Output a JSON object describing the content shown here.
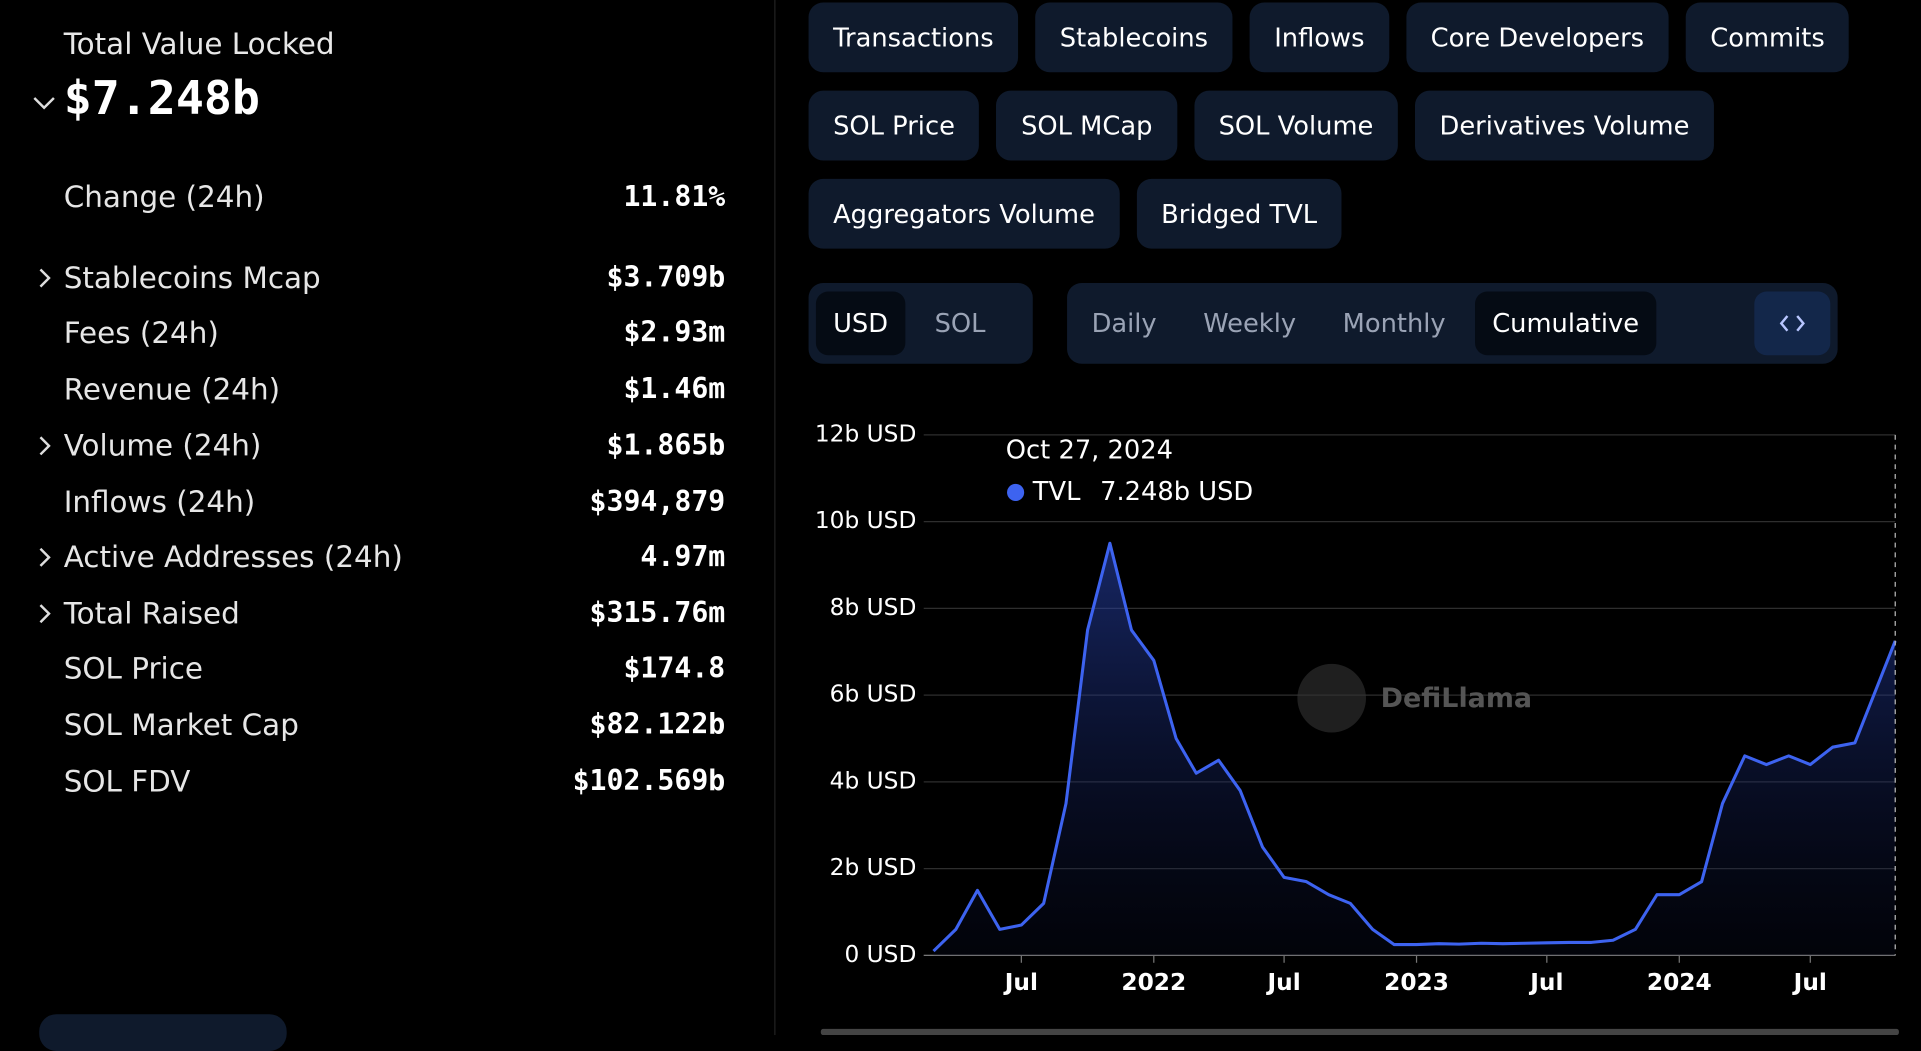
{
  "summary": {
    "label": "Total Value Locked",
    "value": "$7.248b"
  },
  "stats": [
    {
      "label": "Change (24h)",
      "value": "11.81%",
      "expandable": false
    },
    {
      "label": "Stablecoins Mcap",
      "value": "$3.709b",
      "expandable": true
    },
    {
      "label": "Fees (24h)",
      "value": "$2.93m",
      "expandable": false
    },
    {
      "label": "Revenue (24h)",
      "value": "$1.46m",
      "expandable": false
    },
    {
      "label": "Volume (24h)",
      "value": "$1.865b",
      "expandable": true
    },
    {
      "label": "Inflows (24h)",
      "value": "$394,879",
      "expandable": false
    },
    {
      "label": "Active Addresses (24h)",
      "value": "4.97m",
      "expandable": true
    },
    {
      "label": "Total Raised",
      "value": "$315.76m",
      "expandable": true
    },
    {
      "label": "SOL Price",
      "value": "$174.8",
      "expandable": false
    },
    {
      "label": "SOL Market Cap",
      "value": "$82.122b",
      "expandable": false
    },
    {
      "label": "SOL FDV",
      "value": "$102.569b",
      "expandable": false
    }
  ],
  "metrics": [
    "Transactions",
    "Stablecoins",
    "Inflows",
    "Core Developers",
    "Commits",
    "SOL Price",
    "SOL MCap",
    "SOL Volume",
    "Derivatives Volume",
    "Aggregators Volume",
    "Bridged TVL"
  ],
  "currency": {
    "options": [
      "USD",
      "SOL"
    ],
    "selected": 0
  },
  "periods": {
    "options": [
      "Daily",
      "Weekly",
      "Monthly",
      "Cumulative"
    ],
    "selected": 3
  },
  "chart_data": {
    "type": "line",
    "watermark": "DefiLlama",
    "tooltip": {
      "date": "Oct 27, 2024",
      "value": "7.248b USD"
    },
    "x": [
      "2021-03",
      "2021-04",
      "2021-05",
      "2021-06",
      "2021-07",
      "2021-08",
      "2021-09",
      "2021-10",
      "2021-11",
      "2021-12",
      "2022-01",
      "2022-02",
      "2022-03",
      "2022-04",
      "2022-05",
      "2022-06",
      "2022-07",
      "2022-08",
      "2022-09",
      "2022-10",
      "2022-11",
      "2022-12",
      "2023-01",
      "2023-02",
      "2023-03",
      "2023-04",
      "2023-05",
      "2023-06",
      "2023-07",
      "2023-08",
      "2023-09",
      "2023-10",
      "2023-11",
      "2023-12",
      "2024-01",
      "2024-02",
      "2024-03",
      "2024-04",
      "2024-05",
      "2024-06",
      "2024-07",
      "2024-08",
      "2024-09",
      "2024-10-27"
    ],
    "series": [
      {
        "name": "TVL",
        "color": "#3d63f0",
        "values": [
          0.1,
          0.6,
          1.5,
          0.6,
          0.7,
          1.2,
          3.5,
          7.5,
          9.5,
          7.5,
          6.8,
          5.0,
          4.2,
          4.5,
          3.8,
          2.5,
          1.8,
          1.7,
          1.4,
          1.2,
          0.6,
          0.25,
          0.25,
          0.27,
          0.26,
          0.28,
          0.27,
          0.28,
          0.29,
          0.3,
          0.3,
          0.35,
          0.6,
          1.4,
          1.4,
          1.7,
          3.5,
          4.6,
          4.4,
          4.6,
          4.4,
          4.8,
          4.9,
          7.248
        ]
      }
    ],
    "xlim": [
      "2021-03",
      "2024-10-27"
    ],
    "xticks": [
      {
        "value": "2021-07",
        "label": "Jul"
      },
      {
        "value": "2022-01",
        "label": "2022"
      },
      {
        "value": "2022-07",
        "label": "Jul"
      },
      {
        "value": "2023-01",
        "label": "2023"
      },
      {
        "value": "2023-07",
        "label": "Jul"
      },
      {
        "value": "2024-01",
        "label": "2024"
      },
      {
        "value": "2024-07",
        "label": "Jul"
      }
    ],
    "ylim": [
      0,
      12
    ],
    "yticks": [
      {
        "value": 0,
        "label": "0 USD"
      },
      {
        "value": 2,
        "label": "2b USD"
      },
      {
        "value": 4,
        "label": "4b USD"
      },
      {
        "value": 6,
        "label": "6b USD"
      },
      {
        "value": 8,
        "label": "8b USD"
      },
      {
        "value": 10,
        "label": "10b USD"
      },
      {
        "value": 12,
        "label": "12b USD"
      }
    ],
    "grid": true
  }
}
